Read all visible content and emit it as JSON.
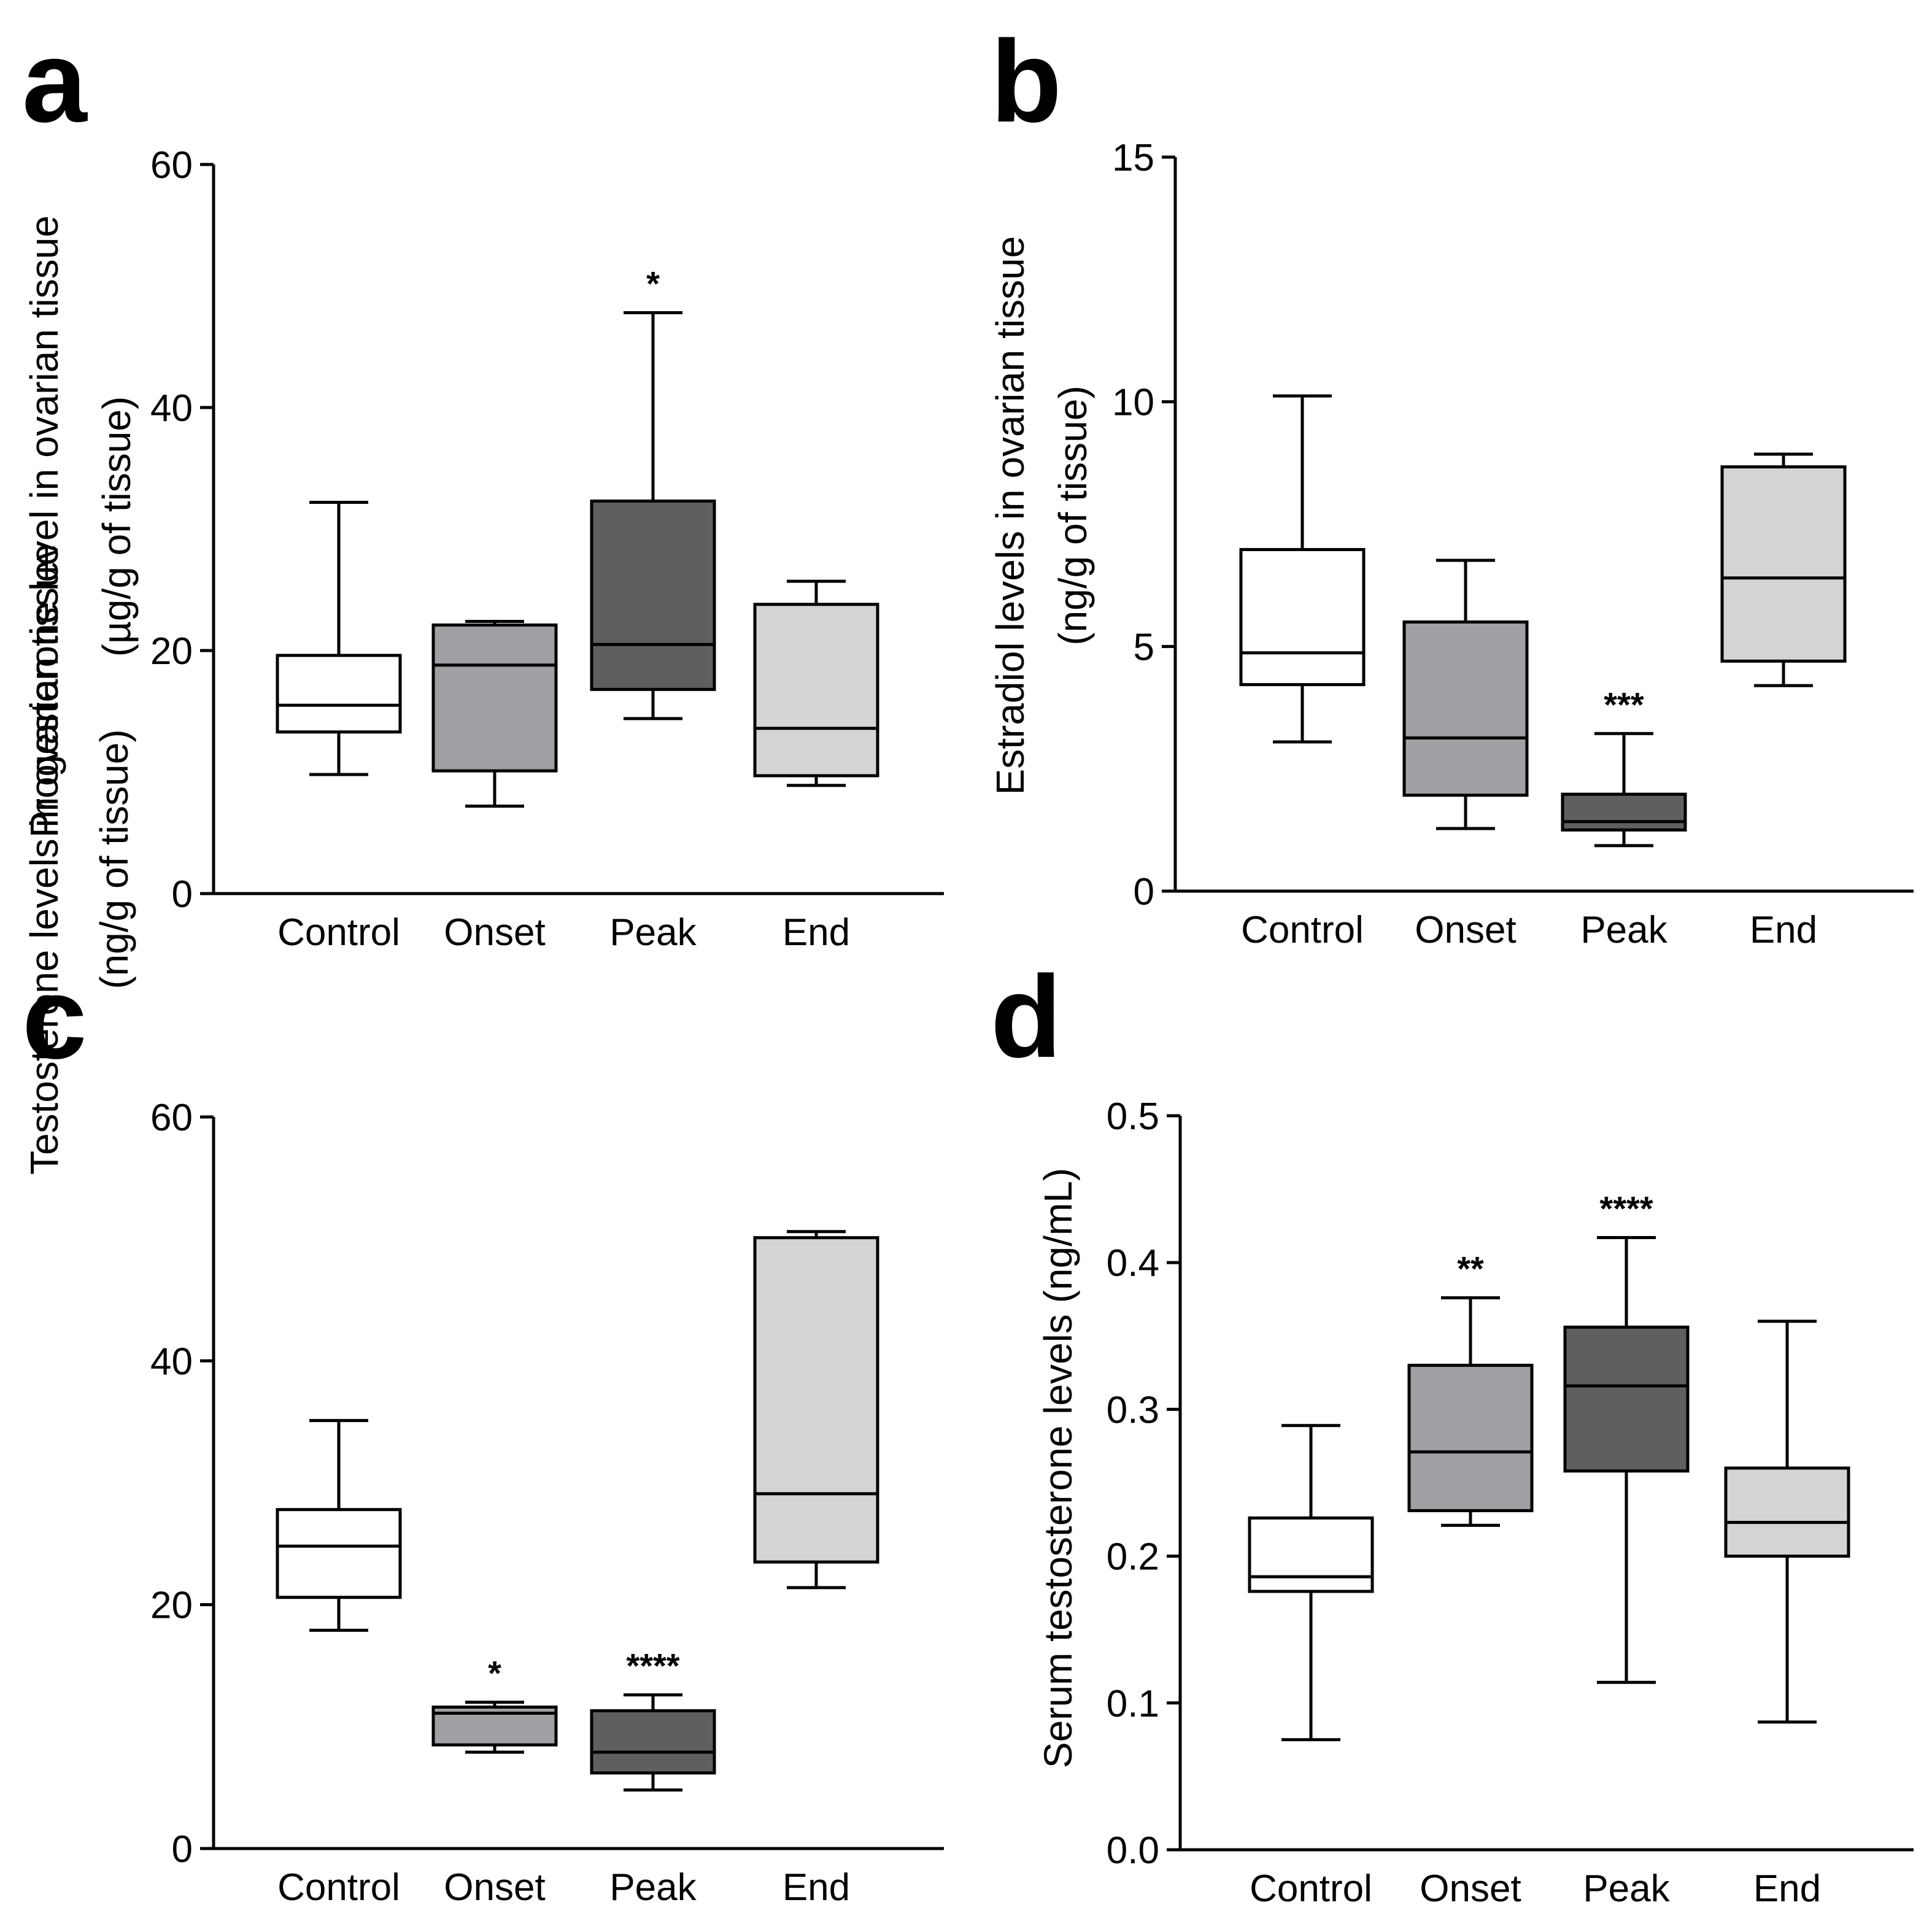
{
  "chart_data": [
    {
      "type": "box",
      "panel_label": "a",
      "ylabel_line1": "Progesterone level in ovarian tissue",
      "ylabel_line2": "(µg/g of tissue)",
      "xlabel": "",
      "ylim": [
        0,
        60
      ],
      "yticks": [
        0,
        20,
        40,
        60
      ],
      "ytick_labels": [
        "0",
        "20",
        "40",
        "60"
      ],
      "categories": [
        "Control",
        "Onset",
        "Peak",
        "End"
      ],
      "series": [
        {
          "min": 9.8,
          "q1": 13.3,
          "median": 15.5,
          "q3": 19.6,
          "max": 32.2,
          "fill": "#ffffff",
          "significance": ""
        },
        {
          "min": 7.2,
          "q1": 10.1,
          "median": 18.8,
          "q3": 22.1,
          "max": 22.4,
          "fill": "#a0a0a4",
          "significance": ""
        },
        {
          "min": 14.4,
          "q1": 16.8,
          "median": 20.5,
          "q3": 32.3,
          "max": 47.8,
          "fill": "#5f5f5f",
          "significance": "*"
        },
        {
          "min": 8.9,
          "q1": 9.7,
          "median": 13.6,
          "q3": 23.8,
          "max": 25.7,
          "fill": "#d4d4d4",
          "significance": ""
        }
      ]
    },
    {
      "type": "box",
      "panel_label": "b",
      "ylabel_line1": "Estradiol levels in ovarian tissue",
      "ylabel_line2": "(ng/g of tissue)",
      "xlabel": "",
      "ylim": [
        0,
        15
      ],
      "yticks": [
        0,
        5,
        10,
        15
      ],
      "ytick_labels": [
        "0",
        "5",
        "10",
        "15"
      ],
      "categories": [
        "Control",
        "Onset",
        "Peak",
        "End"
      ],
      "series": [
        {
          "min": 3.05,
          "q1": 4.22,
          "median": 4.87,
          "q3": 6.98,
          "max": 10.12,
          "fill": "#ffffff",
          "significance": ""
        },
        {
          "min": 1.28,
          "q1": 1.96,
          "median": 3.13,
          "q3": 5.5,
          "max": 6.76,
          "fill": "#a0a0a4",
          "significance": ""
        },
        {
          "min": 0.93,
          "q1": 1.25,
          "median": 1.42,
          "q3": 1.98,
          "max": 3.22,
          "fill": "#5f5f5f",
          "significance": "***"
        },
        {
          "min": 4.2,
          "q1": 4.7,
          "median": 6.4,
          "q3": 8.67,
          "max": 8.93,
          "fill": "#d4d4d4",
          "significance": ""
        }
      ]
    },
    {
      "type": "box",
      "panel_label": "c",
      "ylabel_line1": "Testosterone levels in ovarian tissue",
      "ylabel_line2": "(ng/g of tissue)",
      "xlabel": "",
      "ylim": [
        0,
        60
      ],
      "yticks": [
        0,
        20,
        40,
        60
      ],
      "ytick_labels": [
        "0",
        "20",
        "40",
        "60"
      ],
      "categories": [
        "Control",
        "Onset",
        "Peak",
        "End"
      ],
      "series": [
        {
          "min": 17.9,
          "q1": 20.6,
          "median": 24.8,
          "q3": 27.8,
          "max": 35.1,
          "fill": "#ffffff",
          "significance": ""
        },
        {
          "min": 7.9,
          "q1": 8.5,
          "median": 11.1,
          "q3": 11.6,
          "max": 12.0,
          "fill": "#a0a0a4",
          "significance": "*"
        },
        {
          "min": 4.8,
          "q1": 6.2,
          "median": 7.9,
          "q3": 11.3,
          "max": 12.6,
          "fill": "#5f5f5f",
          "significance": "****"
        },
        {
          "min": 21.4,
          "q1": 23.5,
          "median": 29.1,
          "q3": 50.1,
          "max": 50.6,
          "fill": "#d4d4d4",
          "significance": ""
        }
      ]
    },
    {
      "type": "box",
      "panel_label": "d",
      "ylabel_line1": "Serum testosterone levels (ng/mL)",
      "ylabel_line2": "",
      "xlabel": "",
      "ylim": [
        0,
        0.5
      ],
      "yticks": [
        0,
        0.1,
        0.2,
        0.3,
        0.4,
        0.5
      ],
      "ytick_labels": [
        "0.0",
        "0.1",
        "0.2",
        "0.3",
        "0.4",
        "0.5"
      ],
      "categories": [
        "Control",
        "Onset",
        "Peak",
        "End"
      ],
      "series": [
        {
          "min": 0.075,
          "q1": 0.176,
          "median": 0.186,
          "q3": 0.226,
          "max": 0.289,
          "fill": "#ffffff",
          "significance": ""
        },
        {
          "min": 0.221,
          "q1": 0.231,
          "median": 0.271,
          "q3": 0.33,
          "max": 0.376,
          "fill": "#a0a0a4",
          "significance": "**"
        },
        {
          "min": 0.114,
          "q1": 0.258,
          "median": 0.316,
          "q3": 0.356,
          "max": 0.417,
          "fill": "#5f5f5f",
          "significance": "****"
        },
        {
          "min": 0.087,
          "q1": 0.2,
          "median": 0.223,
          "q3": 0.26,
          "max": 0.36,
          "fill": "#d4d4d4",
          "significance": ""
        }
      ]
    }
  ]
}
